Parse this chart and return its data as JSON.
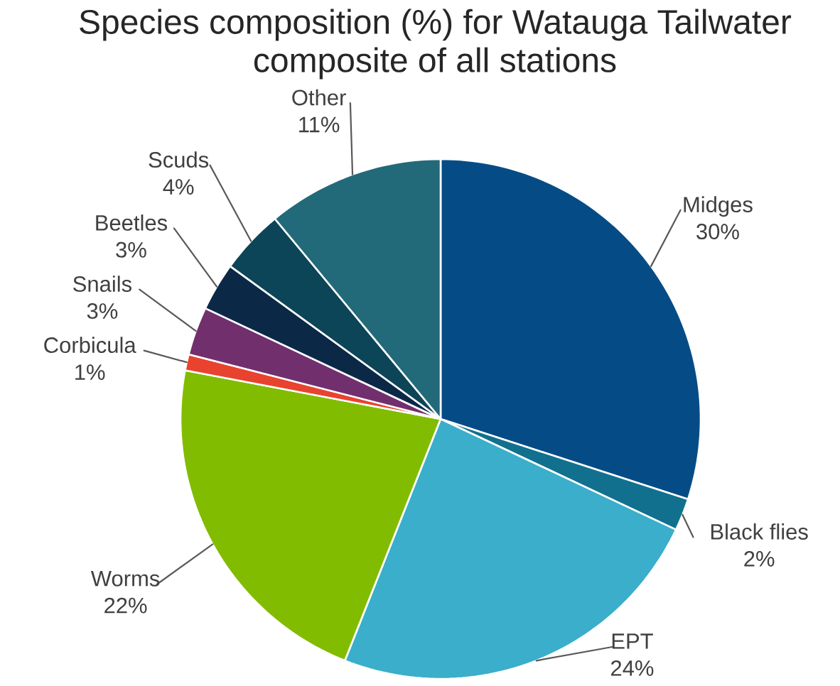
{
  "chart_data": {
    "type": "pie",
    "title": "Species composition (%) for Watauga Tailwater composite of all stations",
    "categories": [
      "Midges",
      "Black flies",
      "EPT",
      "Worms",
      "Corbicula",
      "Snails",
      "Beetles",
      "Scuds",
      "Other"
    ],
    "values": [
      30,
      2,
      24,
      22,
      1,
      3,
      3,
      4,
      11
    ],
    "value_labels": [
      "30%",
      "2%",
      "24%",
      "22%",
      "1%",
      "3%",
      "3%",
      "4%",
      "11%"
    ],
    "colors": [
      "#054c86",
      "#12708f",
      "#3aaecb",
      "#82bc00",
      "#e8432e",
      "#722f6e",
      "#0b2947",
      "#0c4557",
      "#226a7a"
    ]
  }
}
